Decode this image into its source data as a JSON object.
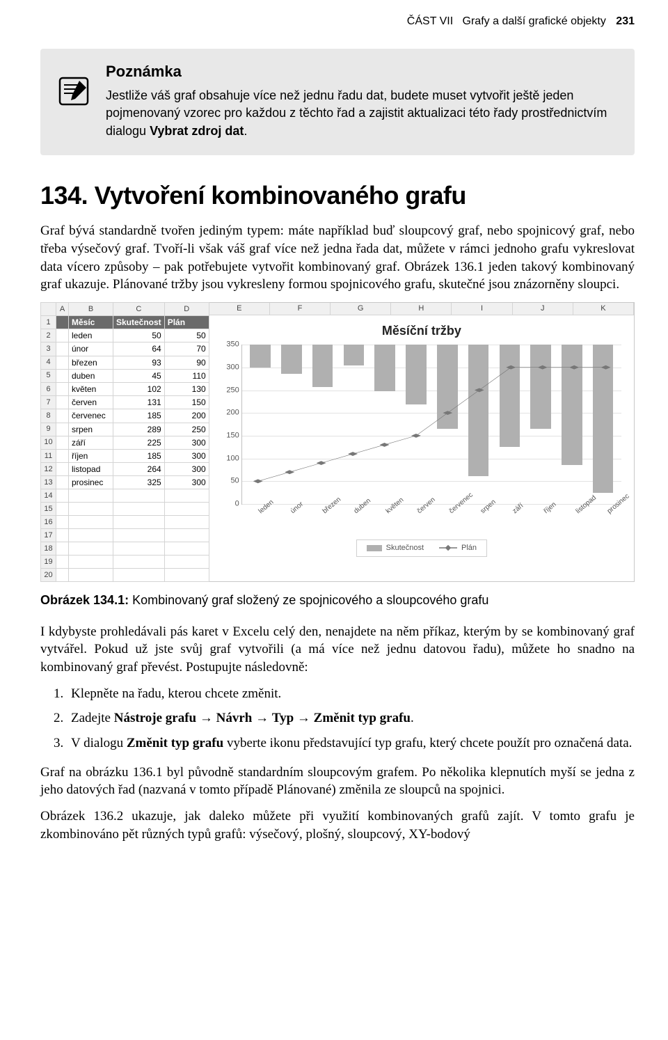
{
  "header": {
    "part": "ČÁST VII",
    "title": "Grafy a další grafické objekty",
    "page": "231"
  },
  "note": {
    "title": "Poznámka",
    "body_pre": "Jestliže váš graf obsahuje více než jednu řadu dat, budete muset vytvořit ještě jeden pojmenovaný vzorec pro každou z těchto řad a zajistit aktualizaci této řady prostřednictvím dialogu ",
    "body_bold": "Vybrat zdroj dat",
    "body_post": "."
  },
  "section": {
    "number": "134.",
    "title": "Vytvoření kombinovaného grafu"
  },
  "para1": "Graf bývá standardně tvořen jediným typem: máte například buď sloupcový graf, nebo spojnicový graf, nebo třeba výsečový graf. Tvoří-li však váš graf více než jedna řada dat, můžete v rámci jednoho grafu vykreslovat data vícero způsoby – pak potřebujete vytvořit kombinovaný graf. Obrázek 136.1 jeden takový kombinovaný graf ukazuje. Plánované tržby jsou vykresleny formou spojnicového grafu, skutečné jsou znázorněny sloupci.",
  "figure": {
    "sheet": {
      "col_letters": [
        "A",
        "B",
        "C",
        "D"
      ],
      "headers": [
        "Měsíc",
        "Skutečnost",
        "Plán"
      ],
      "rows": [
        [
          "leden",
          50,
          50
        ],
        [
          "únor",
          64,
          70
        ],
        [
          "březen",
          93,
          90
        ],
        [
          "duben",
          45,
          110
        ],
        [
          "květen",
          102,
          130
        ],
        [
          "červen",
          131,
          150
        ],
        [
          "červenec",
          185,
          200
        ],
        [
          "srpen",
          289,
          250
        ],
        [
          "září",
          225,
          300
        ],
        [
          "říjen",
          185,
          300
        ],
        [
          "listopad",
          264,
          300
        ],
        [
          "prosinec",
          325,
          300
        ]
      ],
      "blank_rows": 7
    },
    "chart": {
      "title": "Měsíční tržby",
      "type": "combo-bar-line",
      "ylim": [
        0,
        350
      ],
      "yticks": [
        0,
        50,
        100,
        150,
        200,
        250,
        300,
        350
      ],
      "categories": [
        "leden",
        "únor",
        "březen",
        "duben",
        "květen",
        "červen",
        "červenec",
        "srpen",
        "září",
        "říjen",
        "listopad",
        "prosinec"
      ],
      "series": {
        "bar": {
          "name": "Skutečnost",
          "color": "#b0b0b0",
          "values": [
            50,
            64,
            93,
            45,
            102,
            131,
            185,
            289,
            225,
            185,
            264,
            325
          ]
        },
        "line": {
          "name": "Plán",
          "color": "#777777",
          "marker": "diamond",
          "values": [
            50,
            70,
            90,
            110,
            130,
            150,
            200,
            250,
            300,
            300,
            300,
            300
          ]
        }
      },
      "grid_color": "#e2e2e2",
      "axis_color": "#bfbfbf",
      "legend": [
        "Skutečnost",
        "Plán"
      ]
    },
    "extra_cols": [
      "E",
      "F",
      "G",
      "H",
      "I",
      "J",
      "K"
    ]
  },
  "caption": {
    "label": "Obrázek 134.1:",
    "text": "Kombinovaný graf složený ze spojnicového a sloupcového grafu"
  },
  "para2": "I kdybyste prohledávali pás karet v Excelu celý den, nenajdete na něm příkaz, kterým by se kombinovaný graf vytvářel. Pokud už jste svůj graf vytvořili (a má více než jednu datovou řadu), můžete ho snadno na kombinovaný graf převést. Postupujte následovně:",
  "steps": {
    "s1": "Klepněte na řadu, kterou chcete změnit.",
    "s2_pre": "Zadejte ",
    "s2_b1": "Nástroje grafu",
    "s2_a1": " → ",
    "s2_b2": "Návrh",
    "s2_a2": " → ",
    "s2_b3": "Typ",
    "s2_a3": " → ",
    "s2_b4": "Změnit typ grafu",
    "s2_post": ".",
    "s3_pre": "V dialogu ",
    "s3_b": "Změnit typ grafu",
    "s3_post": " vyberte ikonu představující typ grafu, který chcete použít pro označená data."
  },
  "para3": "Graf na obrázku 136.1 byl původně standardním sloupcovým grafem. Po několika klepnutích myší se jedna z jeho datových řad (nazvaná v tomto případě Plánované) změnila ze sloupců na spojnici.",
  "para4": "Obrázek 136.2 ukazuje, jak daleko můžete při využití kombinovaných grafů zajít. V tomto grafu je zkombinováno pět různých typů grafů: výsečový, plošný, sloupcový, XY-bodový"
}
